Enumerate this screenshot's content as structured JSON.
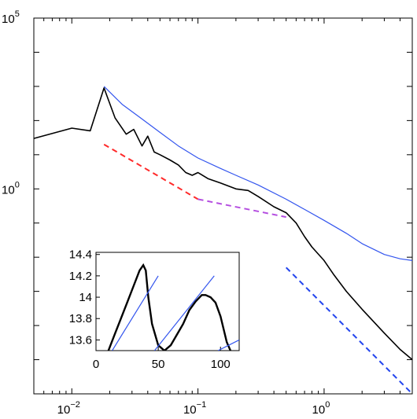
{
  "chart_data": [
    {
      "type": "line",
      "xscale": "log",
      "yscale": "log",
      "xlim": [
        0.005,
        5
      ],
      "ylim": [
        1e-06,
        100000
      ],
      "x_ticks": [
        {
          "value": 0.01,
          "base": "10",
          "exp": "−2"
        },
        {
          "value": 0.1,
          "base": "10",
          "exp": "−1"
        },
        {
          "value": 1,
          "base": "10",
          "exp": "0"
        }
      ],
      "y_ticks": [
        {
          "value": 1,
          "base": "10",
          "exp": "0"
        },
        {
          "value": 100000,
          "base": "10",
          "exp": "5"
        }
      ],
      "grid": false,
      "colors": {
        "spectrum": "#000000",
        "envelope": "#3355ee",
        "red_guide": "#ff2a2a",
        "purple_guide": "#b44de0",
        "blue_guide": "#2244ee"
      },
      "series": [
        {
          "role": "spectrum",
          "style": "solid",
          "x": [
            0.005,
            0.01,
            0.014,
            0.018,
            0.022,
            0.027,
            0.031,
            0.036,
            0.04,
            0.045,
            0.05,
            0.06,
            0.07,
            0.08,
            0.09,
            0.1,
            0.12,
            0.15,
            0.2,
            0.25,
            0.3,
            0.4,
            0.5,
            0.6,
            0.7,
            0.8,
            1,
            1.2,
            1.5,
            2,
            3,
            4,
            5
          ],
          "y": [
            30,
            60,
            50,
            900,
            120,
            40,
            55,
            18,
            35,
            12,
            10,
            7,
            5,
            3,
            2.5,
            3,
            2,
            1.5,
            1,
            0.9,
            0.6,
            0.3,
            0.2,
            0.1,
            0.04,
            0.02,
            0.008,
            0.003,
            0.001,
            0.0003,
            6e-05,
            2e-05,
            1e-05
          ]
        },
        {
          "role": "envelope",
          "style": "solid",
          "x": [
            0.018,
            0.025,
            0.035,
            0.05,
            0.07,
            0.1,
            0.15,
            0.2,
            0.3,
            0.5,
            0.7,
            1,
            1.5,
            2,
            3,
            4,
            5
          ],
          "y": [
            1000,
            300,
            120,
            45,
            18,
            8,
            4,
            2.5,
            1.3,
            0.5,
            0.25,
            0.12,
            0.05,
            0.025,
            0.012,
            0.009,
            0.008
          ]
        },
        {
          "role": "red_guide",
          "style": "dashed",
          "x": [
            0.018,
            0.1
          ],
          "y": [
            20,
            0.5
          ]
        },
        {
          "role": "purple_guide",
          "style": "dashed",
          "x": [
            0.1,
            0.5
          ],
          "y": [
            0.5,
            0.15
          ]
        },
        {
          "role": "blue_guide",
          "style": "dashed",
          "x": [
            0.5,
            5
          ],
          "y": [
            0.005,
            1e-06
          ]
        }
      ]
    },
    {
      "type": "line",
      "xlim": [
        0,
        115
      ],
      "ylim": [
        13.5,
        14.42
      ],
      "x_ticks": [
        0,
        50,
        100
      ],
      "y_ticks": [
        {
          "value": 13.6,
          "label": "13.6"
        },
        {
          "value": 13.8,
          "label": "13.8"
        },
        {
          "value": 14.0,
          "label": "14"
        },
        {
          "value": 14.2,
          "label": "14.2"
        },
        {
          "value": 14.4,
          "label": "14.4"
        }
      ],
      "series": [
        {
          "role": "signal",
          "x": [
            10,
            15,
            20,
            25,
            30,
            35,
            38,
            40,
            42,
            45,
            50,
            55,
            60,
            65,
            70,
            75,
            80,
            85,
            88,
            92,
            96,
            100,
            105,
            108
          ],
          "y": [
            13.5,
            13.65,
            13.8,
            13.95,
            14.1,
            14.25,
            14.3,
            14.25,
            14.0,
            13.75,
            13.55,
            13.5,
            13.55,
            13.65,
            13.75,
            13.88,
            13.96,
            14.02,
            14.02,
            14.0,
            13.95,
            13.82,
            13.58,
            13.5
          ]
        },
        {
          "role": "fit",
          "x": [
            13,
            50
          ],
          "y": [
            13.5,
            14.2
          ]
        },
        {
          "role": "fit",
          "x": [
            47,
            95
          ],
          "y": [
            13.5,
            14.2
          ]
        },
        {
          "role": "fit",
          "x": [
            98,
            115
          ],
          "y": [
            13.5,
            13.6
          ]
        }
      ]
    }
  ]
}
